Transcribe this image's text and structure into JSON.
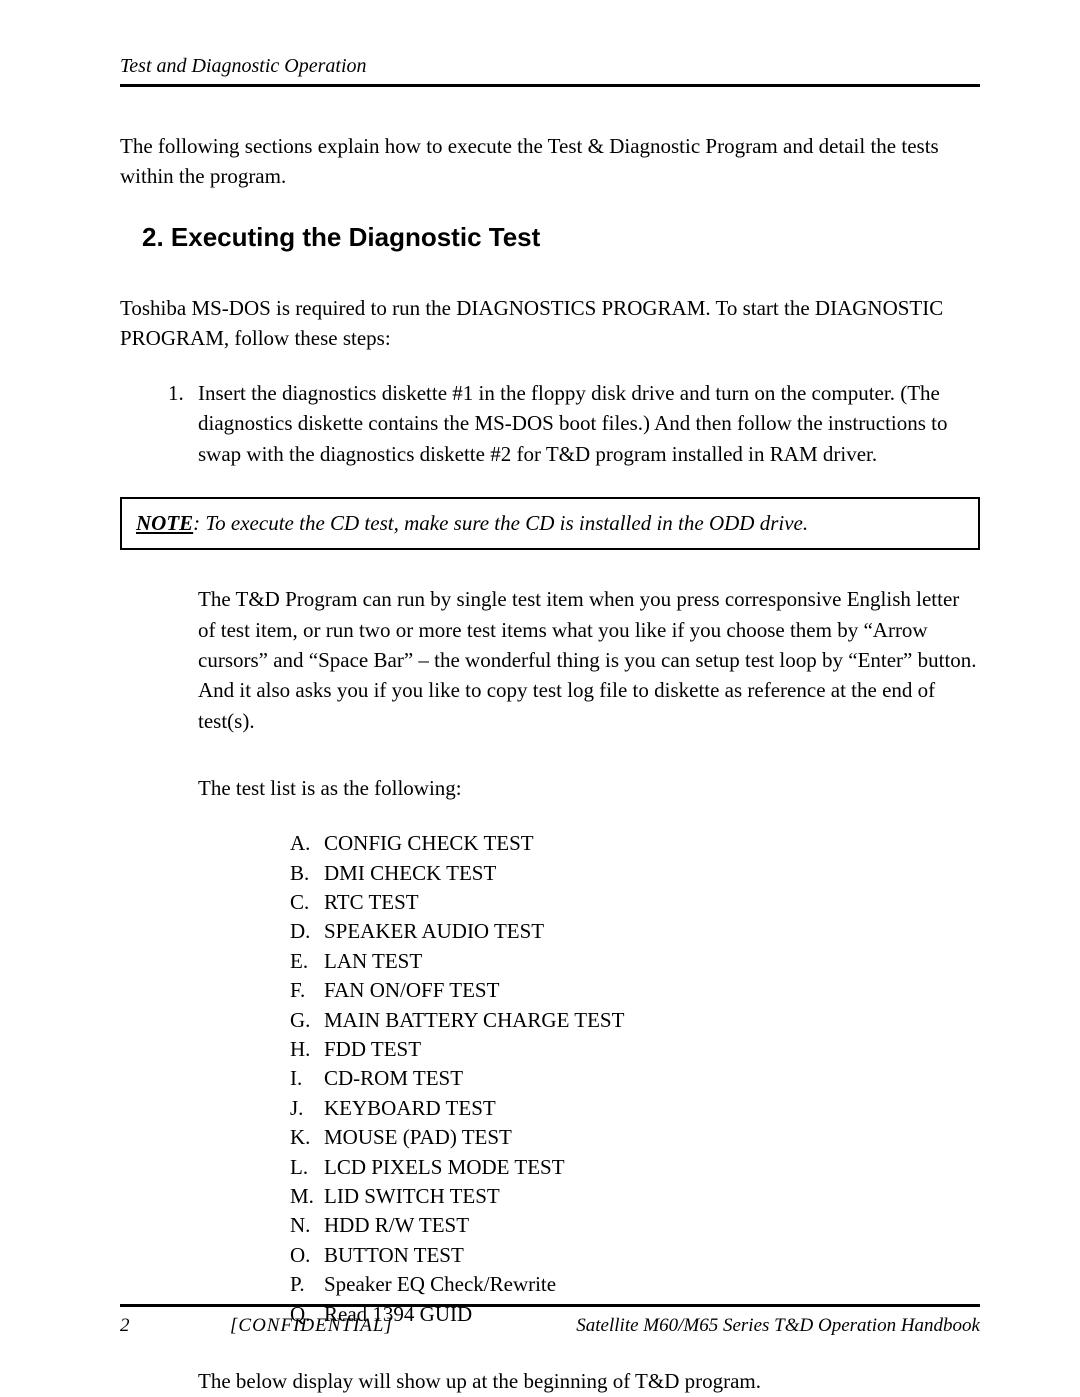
{
  "header": {
    "running_title": "Test and Diagnostic Operation"
  },
  "intro": "The following sections explain how to execute the Test & Diagnostic Program and detail the tests within the program.",
  "section": {
    "number": "2.",
    "title": "Executing the Diagnostic Test"
  },
  "para1": "Toshiba MS-DOS is required to run the DIAGNOSTICS PROGRAM.  To start the DIAGNOSTIC PROGRAM, follow these steps:",
  "step": {
    "number": "1.",
    "text": "Insert the diagnostics diskette #1 in the floppy disk drive and turn on the computer.  (The diagnostics diskette contains the MS-DOS boot files.) And then follow the instructions to swap with the diagnostics diskette #2 for T&D program installed in RAM driver."
  },
  "note": {
    "label": "NOTE",
    "text": ":  To execute the CD test, make sure the CD is installed in the ODD drive."
  },
  "post_note": "The T&D Program can run by single test item when you press corresponsive English letter of test item, or run two or more test items what you like if you choose them by “Arrow cursors” and “Space Bar” – the wonderful thing is you can setup test loop by “Enter” button. And it also asks you if you like to copy test log file to diskette as reference at the end of test(s).",
  "list_intro": "The test list is as the following:",
  "tests": [
    {
      "letter": "A.",
      "name": "CONFIG CHECK TEST"
    },
    {
      "letter": "B.",
      "name": "DMI CHECK TEST"
    },
    {
      "letter": "C.",
      "name": "RTC TEST"
    },
    {
      "letter": "D.",
      "name": "SPEAKER AUDIO TEST"
    },
    {
      "letter": "E.",
      "name": "LAN TEST"
    },
    {
      "letter": "F.",
      "name": "FAN ON/OFF TEST"
    },
    {
      "letter": "G.",
      "name": "MAIN BATTERY CHARGE TEST"
    },
    {
      "letter": "H.",
      "name": "FDD TEST"
    },
    {
      "letter": "I.",
      "name": "CD-ROM TEST"
    },
    {
      "letter": "J.",
      "name": "KEYBOARD TEST"
    },
    {
      "letter": "K.",
      "name": "MOUSE (PAD) TEST"
    },
    {
      "letter": "L.",
      "name": "LCD PIXELS MODE TEST"
    },
    {
      "letter": "M.",
      "name": "LID SWITCH TEST"
    },
    {
      "letter": "N.",
      "name": "HDD R/W TEST"
    },
    {
      "letter": "O.",
      "name": "BUTTON TEST"
    },
    {
      "letter": "P.",
      "name": "Speaker EQ Check/Rewrite"
    },
    {
      "letter": "Q.",
      "name": "Read 1394 GUID"
    }
  ],
  "closing": "The below display will show up at the beginning of T&D program.",
  "footer": {
    "page": "2",
    "confidential": "[CONFIDENTIAL]",
    "title": "Satellite M60/M65 Series T&D Operation Handbook"
  }
}
